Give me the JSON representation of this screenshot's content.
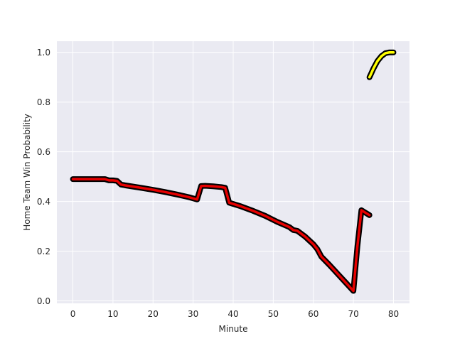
{
  "chart_data": {
    "type": "line",
    "title": "",
    "xlabel": "Minute",
    "ylabel": "Home Team Win Probability",
    "xlim": [
      -4,
      84
    ],
    "ylim": [
      -0.01,
      1.045
    ],
    "xticks": [
      0,
      10,
      20,
      30,
      40,
      50,
      60,
      70,
      80
    ],
    "yticks": [
      0.0,
      0.2,
      0.4,
      0.6,
      0.8,
      1.0
    ],
    "xtick_labels": [
      "0",
      "10",
      "20",
      "30",
      "40",
      "50",
      "60",
      "70",
      "80"
    ],
    "ytick_labels": [
      "0.0",
      "0.2",
      "0.4",
      "0.6",
      "0.8",
      "1.0"
    ],
    "grid": true,
    "background_color": "#eaeaf2",
    "grid_color": "#ffffff",
    "outline_color": "#000000",
    "series": [
      {
        "line_color": "#e60000",
        "x": [
          0,
          2,
          4,
          6,
          8,
          9,
          10,
          11,
          12,
          13,
          15,
          17,
          20,
          23,
          26,
          29,
          31,
          32,
          33,
          35,
          37,
          38,
          39,
          42,
          45,
          48,
          51,
          54,
          55,
          56,
          57,
          58,
          59,
          60,
          61,
          62,
          64,
          66,
          68,
          70,
          71,
          72,
          73,
          74
        ],
        "y": [
          0.49,
          0.49,
          0.49,
          0.49,
          0.49,
          0.485,
          0.485,
          0.483,
          0.468,
          0.465,
          0.46,
          0.455,
          0.447,
          0.438,
          0.428,
          0.417,
          0.408,
          0.462,
          0.463,
          0.461,
          0.458,
          0.455,
          0.395,
          0.38,
          0.362,
          0.342,
          0.318,
          0.297,
          0.285,
          0.282,
          0.27,
          0.258,
          0.243,
          0.228,
          0.208,
          0.178,
          0.145,
          0.11,
          0.075,
          0.04,
          0.22,
          0.365,
          0.355,
          0.345
        ]
      },
      {
        "line_color": "#ffff00",
        "x": [
          74,
          74.3,
          75,
          76,
          77,
          78,
          79,
          80
        ],
        "y": [
          0.9,
          0.91,
          0.935,
          0.965,
          0.985,
          0.997,
          1.0,
          1.0
        ]
      }
    ]
  }
}
